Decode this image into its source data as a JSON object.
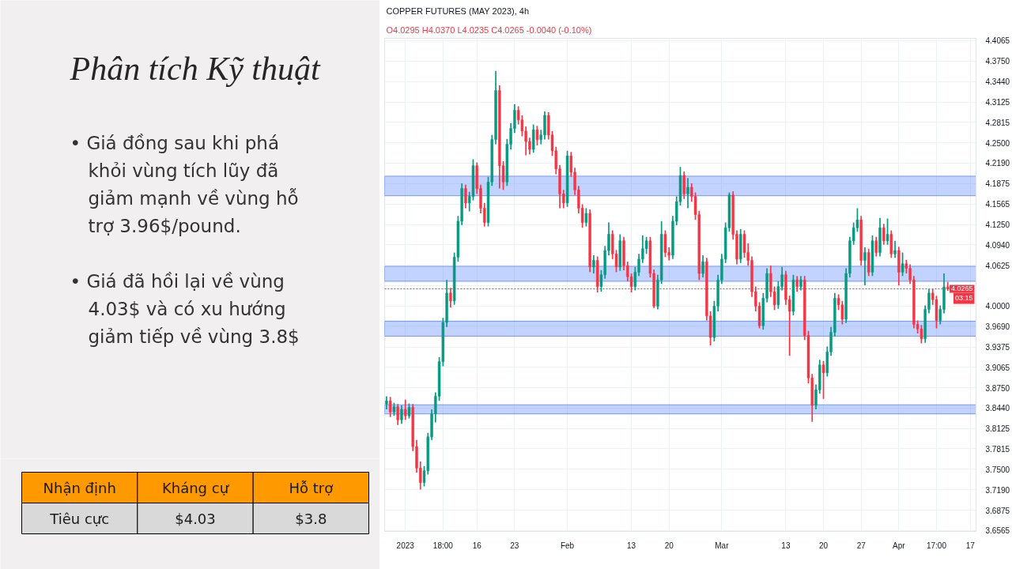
{
  "chart_data": [
    {
      "type": "other",
      "title": "Phân tích Kỹ thuật",
      "annotations": [
        "• Giá đồng sau khi phá khỏi vùng tích lũy đã giảm mạnh về vùng hỗ trợ 3.96$/pound.",
        "• Giá đã hồi lại về vùng 4.03$ và có xu hướng giảm tiếp về vùng 3.8$"
      ]
    },
    {
      "type": "other",
      "categories": [
        "Nhận định",
        "Kháng cự",
        "Hỗ trợ"
      ],
      "annotations": [
        "Tiêu cực",
        "$4.03",
        "$3.8"
      ]
    },
    {
      "type": "candlestick",
      "title": "COPPER FUTURES (MAY 2023), 4h",
      "subtitle": "O4.0295 H4.0370 L4.0235 C4.0265 -0.0040 (-0.10%)",
      "categories": [
        null,
        null,
        null,
        null,
        null,
        "2023",
        null,
        null,
        null,
        null,
        null,
        null,
        null,
        null,
        null,
        "18:00",
        null,
        null,
        null,
        null,
        null,
        null,
        null,
        null,
        "16",
        null,
        null,
        null,
        null,
        null,
        null,
        null,
        null,
        null,
        "23",
        null,
        null,
        null,
        null,
        null,
        null,
        null,
        null,
        null,
        null,
        null,
        null,
        null,
        "Feb",
        null,
        null,
        null,
        null,
        null,
        null,
        null,
        null,
        null,
        null,
        null,
        null,
        null,
        null,
        null,
        null,
        "13",
        null,
        null,
        null,
        null,
        null,
        null,
        null,
        null,
        null,
        "20",
        null,
        null,
        null,
        null,
        null,
        null,
        null,
        null,
        null,
        null,
        null,
        null,
        null,
        "Mar",
        null,
        null,
        null,
        null,
        null,
        null,
        null,
        null,
        null,
        null,
        null,
        null,
        null,
        null,
        null,
        null,
        "13",
        null,
        null,
        null,
        null,
        null,
        null,
        null,
        null,
        null,
        "20",
        null,
        null,
        null,
        null,
        null,
        null,
        null,
        null,
        null,
        "27",
        null,
        null,
        null,
        null,
        null,
        null,
        null,
        null,
        null,
        "Apr",
        null,
        null,
        null,
        null,
        null,
        null,
        null,
        null,
        null,
        "17:00",
        null,
        null,
        null,
        null,
        null,
        null,
        null,
        null,
        "17",
        null
      ],
      "ohlc": [
        [
          3.85,
          3.862,
          3.842,
          3.855
        ],
        [
          3.855,
          3.861,
          3.83,
          3.838
        ],
        [
          3.838,
          3.852,
          3.832,
          3.846
        ],
        [
          3.846,
          3.85,
          3.818,
          3.826
        ],
        [
          3.826,
          3.848,
          3.82,
          3.842
        ],
        [
          3.842,
          3.857,
          3.826,
          3.832
        ],
        [
          3.832,
          3.851,
          3.828,
          3.845
        ],
        [
          3.845,
          3.85,
          3.778,
          3.785
        ],
        [
          3.785,
          3.795,
          3.745,
          3.752
        ],
        [
          3.752,
          3.762,
          3.719,
          3.73
        ],
        [
          3.73,
          3.755,
          3.724,
          3.748
        ],
        [
          3.748,
          3.806,
          3.742,
          3.8
        ],
        [
          3.8,
          3.842,
          3.795,
          3.835
        ],
        [
          3.835,
          3.868,
          3.822,
          3.862
        ],
        [
          3.862,
          3.922,
          3.855,
          3.915
        ],
        [
          3.915,
          3.982,
          3.908,
          3.975
        ],
        [
          3.975,
          4.04,
          3.968,
          4.02
        ],
        [
          4.02,
          4.028,
          3.998,
          4.008
        ],
        [
          4.008,
          4.082,
          4.002,
          4.075
        ],
        [
          4.075,
          4.138,
          4.068,
          4.13
        ],
        [
          4.13,
          4.188,
          4.124,
          4.18
        ],
        [
          4.18,
          4.186,
          4.15,
          4.158
        ],
        [
          4.158,
          4.175,
          4.145,
          4.168
        ],
        [
          4.168,
          4.225,
          4.162,
          4.215
        ],
        [
          4.215,
          4.22,
          4.172,
          4.18
        ],
        [
          4.18,
          4.186,
          4.142,
          4.15
        ],
        [
          4.15,
          4.158,
          4.122,
          4.128
        ],
        [
          4.128,
          4.198,
          4.122,
          4.19
        ],
        [
          4.19,
          4.262,
          4.184,
          4.255
        ],
        [
          4.255,
          4.36,
          4.248,
          4.33
        ],
        [
          4.33,
          4.338,
          4.18,
          4.215
        ],
        [
          4.215,
          4.222,
          4.178,
          4.19
        ],
        [
          4.19,
          4.256,
          4.184,
          4.248
        ],
        [
          4.248,
          4.28,
          4.24,
          4.272
        ],
        [
          4.272,
          4.309,
          4.265,
          4.3
        ],
        [
          4.3,
          4.306,
          4.278,
          4.285
        ],
        [
          4.285,
          4.292,
          4.26,
          4.268
        ],
        [
          4.268,
          4.275,
          4.231,
          4.252
        ],
        [
          4.252,
          4.258,
          4.232,
          4.24
        ],
        [
          4.24,
          4.278,
          4.235,
          4.27
        ],
        [
          4.27,
          4.276,
          4.246,
          4.255
        ],
        [
          4.255,
          4.27,
          4.248,
          4.262
        ],
        [
          4.262,
          4.298,
          4.255,
          4.292
        ],
        [
          4.292,
          4.297,
          4.255,
          4.262
        ],
        [
          4.262,
          4.268,
          4.23,
          4.238
        ],
        [
          4.238,
          4.244,
          4.202,
          4.21
        ],
        [
          4.21,
          4.216,
          4.15,
          4.172
        ],
        [
          4.172,
          4.178,
          4.15,
          4.158
        ],
        [
          4.158,
          4.238,
          4.152,
          4.23
        ],
        [
          4.23,
          4.236,
          4.198,
          4.205
        ],
        [
          4.205,
          4.212,
          4.17,
          4.178
        ],
        [
          4.178,
          4.184,
          4.142,
          4.15
        ],
        [
          4.15,
          4.156,
          4.12,
          4.128
        ],
        [
          4.128,
          4.15,
          4.122,
          4.142
        ],
        [
          4.142,
          4.148,
          4.052,
          4.06
        ],
        [
          4.06,
          4.078,
          4.05,
          4.07
        ],
        [
          4.07,
          4.076,
          4.021,
          4.03
        ],
        [
          4.03,
          4.055,
          4.022,
          4.048
        ],
        [
          4.048,
          4.092,
          4.042,
          4.085
        ],
        [
          4.085,
          4.128,
          4.078,
          4.11
        ],
        [
          4.11,
          4.116,
          4.072,
          4.08
        ],
        [
          4.08,
          4.086,
          4.052,
          4.06
        ],
        [
          4.06,
          4.11,
          4.054,
          4.1
        ],
        [
          4.1,
          4.106,
          4.055,
          4.062
        ],
        [
          4.062,
          4.068,
          4.038,
          4.045
        ],
        [
          4.045,
          4.05,
          4.021,
          4.03
        ],
        [
          4.03,
          4.06,
          4.024,
          4.052
        ],
        [
          4.052,
          4.08,
          4.046,
          4.072
        ],
        [
          4.072,
          4.108,
          4.066,
          4.088
        ],
        [
          4.088,
          4.106,
          4.08,
          4.1
        ],
        [
          4.1,
          4.106,
          4.044,
          4.05
        ],
        [
          4.05,
          4.056,
          3.997,
          4.0
        ],
        [
          4.0,
          4.048,
          3.995,
          4.04
        ],
        [
          4.04,
          4.13,
          4.034,
          4.11
        ],
        [
          4.11,
          4.116,
          4.075,
          4.082
        ],
        [
          4.082,
          4.09,
          4.07,
          4.078
        ],
        [
          4.078,
          4.138,
          4.072,
          4.13
        ],
        [
          4.13,
          4.168,
          4.124,
          4.16
        ],
        [
          4.16,
          4.213,
          4.154,
          4.2
        ],
        [
          4.2,
          4.206,
          4.164,
          4.172
        ],
        [
          4.172,
          4.196,
          4.15,
          4.182
        ],
        [
          4.182,
          4.188,
          4.16,
          4.168
        ],
        [
          4.168,
          4.174,
          4.132,
          4.14
        ],
        [
          4.14,
          4.146,
          4.04,
          4.05
        ],
        [
          4.05,
          4.078,
          4.044,
          4.068
        ],
        [
          4.068,
          4.074,
          3.978,
          3.985
        ],
        [
          3.985,
          3.992,
          3.94,
          3.952
        ],
        [
          3.952,
          4.008,
          3.946,
          4.0
        ],
        [
          4.0,
          4.048,
          3.992,
          4.04
        ],
        [
          4.04,
          4.08,
          4.034,
          4.072
        ],
        [
          4.072,
          4.128,
          4.066,
          4.12
        ],
        [
          4.12,
          4.174,
          4.114,
          4.17
        ],
        [
          4.17,
          4.176,
          4.102,
          4.11
        ],
        [
          4.11,
          4.116,
          4.064,
          4.072
        ],
        [
          4.072,
          4.118,
          4.066,
          4.11
        ],
        [
          4.11,
          4.116,
          4.074,
          4.082
        ],
        [
          4.082,
          4.096,
          4.062,
          4.07
        ],
        [
          4.07,
          4.076,
          4.014,
          4.022
        ],
        [
          4.022,
          4.03,
          3.992,
          4.0
        ],
        [
          4.0,
          4.006,
          3.966,
          3.97
        ],
        [
          3.97,
          4.02,
          3.964,
          4.012
        ],
        [
          4.012,
          4.058,
          4.006,
          4.05
        ],
        [
          4.05,
          4.062,
          4.014,
          4.022
        ],
        [
          4.022,
          4.03,
          3.994,
          4.002
        ],
        [
          4.002,
          4.038,
          3.996,
          4.03
        ],
        [
          4.03,
          4.06,
          4.024,
          4.048
        ],
        [
          4.048,
          4.054,
          4.002,
          4.01
        ],
        [
          4.01,
          4.016,
          3.924,
          3.992
        ],
        [
          3.992,
          4.048,
          3.986,
          4.04
        ],
        [
          4.04,
          4.046,
          4.022,
          4.03
        ],
        [
          4.03,
          4.046,
          4.024,
          4.04
        ],
        [
          4.04,
          4.046,
          3.948,
          3.955
        ],
        [
          3.955,
          3.962,
          3.882,
          3.89
        ],
        [
          3.89,
          3.896,
          3.823,
          3.848
        ],
        [
          3.848,
          3.88,
          3.842,
          3.872
        ],
        [
          3.872,
          3.918,
          3.866,
          3.91
        ],
        [
          3.91,
          3.916,
          3.858,
          3.898
        ],
        [
          3.898,
          3.938,
          3.892,
          3.93
        ],
        [
          3.93,
          3.968,
          3.924,
          3.96
        ],
        [
          3.96,
          4.02,
          3.954,
          4.012
        ],
        [
          4.012,
          4.018,
          3.994,
          4.002
        ],
        [
          4.002,
          4.008,
          3.972,
          3.98
        ],
        [
          3.98,
          4.058,
          3.974,
          4.05
        ],
        [
          4.05,
          4.106,
          4.044,
          4.1
        ],
        [
          4.1,
          4.128,
          4.094,
          4.12
        ],
        [
          4.12,
          4.15,
          4.114,
          4.132
        ],
        [
          4.132,
          4.138,
          4.062,
          4.07
        ],
        [
          4.07,
          4.09,
          4.032,
          4.082
        ],
        [
          4.082,
          4.088,
          4.046,
          4.052
        ],
        [
          4.052,
          4.108,
          4.046,
          4.1
        ],
        [
          4.1,
          4.106,
          4.076,
          4.082
        ],
        [
          4.082,
          4.135,
          4.076,
          4.12
        ],
        [
          4.12,
          4.126,
          4.094,
          4.1
        ],
        [
          4.1,
          4.134,
          4.094,
          4.11
        ],
        [
          4.11,
          4.116,
          4.074,
          4.08
        ],
        [
          4.08,
          4.1,
          4.074,
          4.085
        ],
        [
          4.085,
          4.091,
          4.032,
          4.052
        ],
        [
          4.052,
          4.082,
          4.046,
          4.065
        ],
        [
          4.065,
          4.071,
          4.05,
          4.058
        ],
        [
          4.058,
          4.064,
          4.034,
          4.04
        ],
        [
          4.04,
          4.046,
          3.966,
          3.972
        ],
        [
          3.972,
          3.978,
          3.958,
          3.965
        ],
        [
          3.965,
          3.971,
          3.943,
          3.95
        ],
        [
          3.95,
          4.001,
          3.944,
          3.995
        ],
        [
          3.995,
          4.026,
          3.989,
          4.02
        ],
        [
          4.02,
          4.026,
          4.002,
          4.01
        ],
        [
          4.01,
          4.016,
          3.966,
          3.978
        ],
        [
          3.978,
          4.001,
          3.972,
          3.995
        ],
        [
          3.995,
          4.05,
          3.989,
          4.0295
        ],
        [
          4.0295,
          4.037,
          4.0235,
          4.0265
        ],
        null,
        null,
        null,
        null,
        null,
        null,
        null
      ],
      "ylim": [
        3.655,
        4.41
      ],
      "yticks": [
        4.4065,
        {
          "value": 4.375,
          "label": "4.3750"
        },
        {
          "value": 4.344,
          "label": "4.3440"
        },
        4.3125,
        4.2815,
        {
          "value": 4.25,
          "label": "4.2500"
        },
        {
          "value": 4.219,
          "label": "4.2190"
        },
        4.1875,
        4.1565,
        {
          "value": 4.125,
          "label": "4.1250"
        },
        {
          "value": 4.094,
          "label": "4.0940"
        },
        4.0625,
        {
          "value": 4.0315,
          "label": null
        },
        {
          "value": 4.0,
          "label": "4.0000"
        },
        {
          "value": 3.969,
          "label": "3.9690"
        },
        3.9375,
        3.9065,
        {
          "value": 3.875,
          "label": "3.8750"
        },
        {
          "value": 3.844,
          "label": "3.8440"
        },
        3.8125,
        3.7815,
        {
          "value": 3.75,
          "label": "3.7500"
        },
        {
          "value": 3.719,
          "label": "3.7190"
        },
        3.6875,
        3.6565
      ],
      "grid": true,
      "bands": [
        {
          "axis": "y",
          "from": 4.169,
          "to": 4.199,
          "color": "#2962ff"
        },
        {
          "axis": "y",
          "from": 4.038,
          "to": 4.061,
          "color": "#2962ff"
        },
        {
          "axis": "y",
          "from": 3.954,
          "to": 3.977,
          "color": "#2962ff"
        },
        {
          "axis": "y",
          "from": 3.835,
          "to": 3.849,
          "color": "#2962ff"
        }
      ],
      "ref_lines": [
        {
          "axis": "y",
          "value": 4.0265,
          "label": "4.0265",
          "color": "#f23645",
          "line_style": "dotted"
        }
      ],
      "annotations": [
        "03:15"
      ]
    }
  ]
}
